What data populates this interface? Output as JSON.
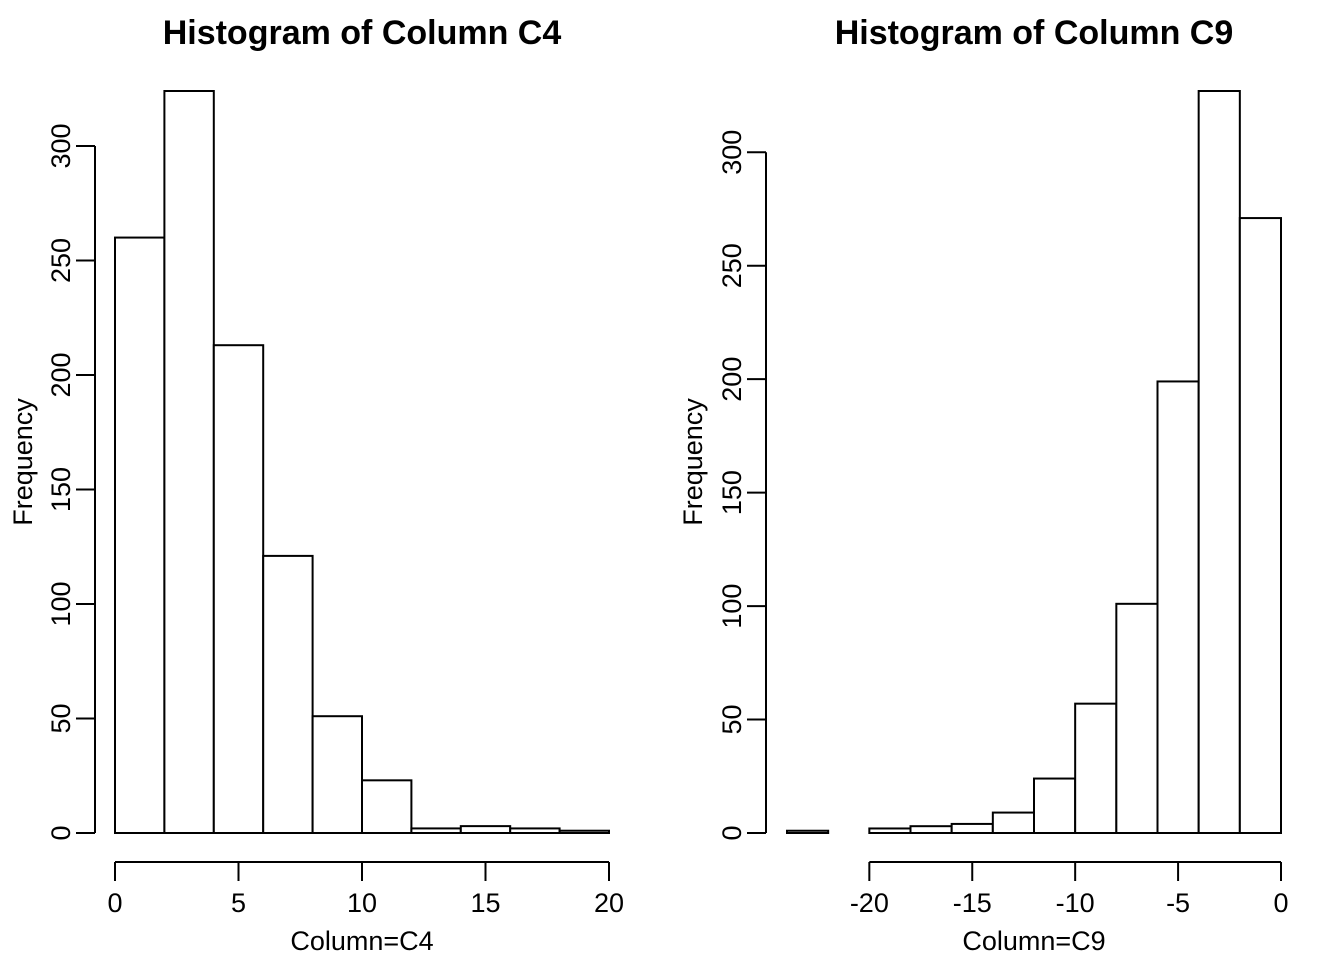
{
  "chart_data": [
    {
      "type": "bar",
      "title": "Histogram of Column C4",
      "xlabel": "Column=C4",
      "ylabel": "Frequency",
      "bin_edges": [
        0,
        2,
        4,
        6,
        8,
        10,
        12,
        14,
        16,
        18,
        20
      ],
      "values": [
        260,
        324,
        213,
        121,
        51,
        23,
        2,
        3,
        2,
        1
      ],
      "xlim": [
        0,
        20
      ],
      "ylim": [
        0,
        324
      ],
      "x_ticks": [
        0,
        5,
        10,
        15,
        20
      ],
      "x_tick_labels": [
        "0",
        "5",
        "10",
        "15",
        "20"
      ],
      "y_ticks": [
        0,
        50,
        100,
        150,
        200,
        250,
        300
      ],
      "y_tick_labels": [
        "0",
        "50",
        "100",
        "150",
        "200",
        "250",
        "300"
      ],
      "grid": false
    },
    {
      "type": "bar",
      "title": "Histogram of Column C9",
      "xlabel": "Column=C9",
      "ylabel": "Frequency",
      "bin_edges": [
        -24,
        -22,
        -20,
        -18,
        -16,
        -14,
        -12,
        -10,
        -8,
        -6,
        -4,
        -2,
        0
      ],
      "values": [
        1,
        0,
        2,
        3,
        4,
        9,
        24,
        57,
        101,
        199,
        327,
        271
      ],
      "xlim": [
        -24,
        0
      ],
      "ylim": [
        0,
        327
      ],
      "x_ticks": [
        -20,
        -15,
        -10,
        -5,
        0
      ],
      "x_tick_labels": [
        "-20",
        "-15",
        "-10",
        "-5",
        "0"
      ],
      "y_ticks": [
        0,
        50,
        100,
        150,
        200,
        250,
        300
      ],
      "y_tick_labels": [
        "0",
        "50",
        "100",
        "150",
        "200",
        "250",
        "300"
      ],
      "grid": false
    }
  ]
}
